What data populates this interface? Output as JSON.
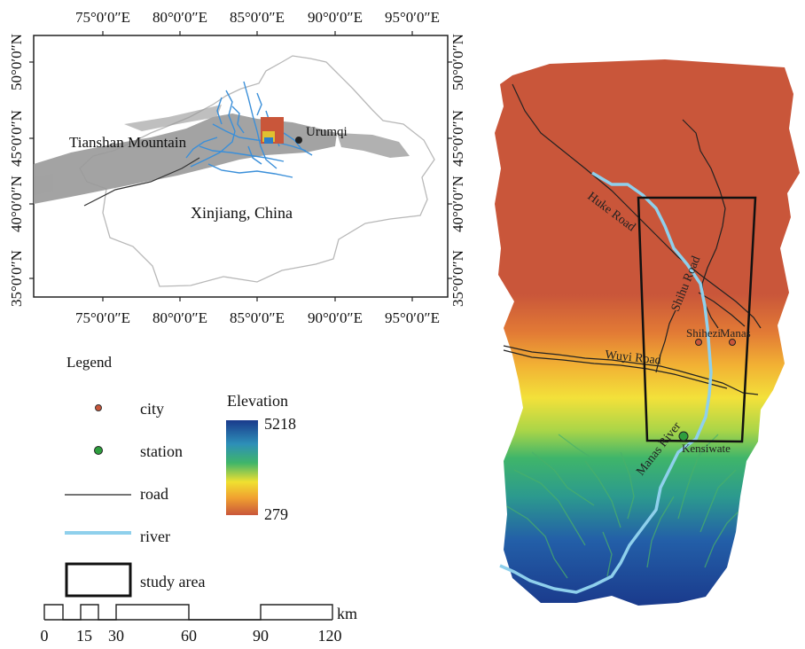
{
  "inset_map": {
    "lon_ticks": [
      "75°0′0″E",
      "80°0′0″E",
      "85°0′0″E",
      "90°0′0″E",
      "95°0′0″E"
    ],
    "lat_ticks": [
      "50°0′0″N",
      "45°0′0″N",
      "40°0′0″N",
      "35°0′0″N"
    ],
    "labels": {
      "mountain": "Tianshan Mountain",
      "region": "Xinjiang, China",
      "city": "Urumqi"
    }
  },
  "legend": {
    "title": "Legend",
    "items": [
      {
        "symbol": "city",
        "label": "city"
      },
      {
        "symbol": "station",
        "label": "station"
      },
      {
        "symbol": "road",
        "label": "road"
      },
      {
        "symbol": "river",
        "label": "river"
      },
      {
        "symbol": "study-area",
        "label": "study area"
      }
    ],
    "elevation": {
      "title": "Elevation",
      "max": "5218",
      "min": "279"
    },
    "scale": {
      "unit": "km",
      "ticks": [
        "0",
        "15",
        "30",
        "60",
        "90",
        "120"
      ]
    }
  },
  "main_map": {
    "labels": {
      "huke_road": "Huke Road",
      "shihu_road": "Shihu Road",
      "wuyi_road": "Wuyi Road",
      "manas_river": "Manas River",
      "shihezi": "Shihezi",
      "manas": "Manas",
      "kensiwate": "Kensiwate"
    }
  },
  "colors": {
    "river": "#8fd0ec",
    "lowland": "#c9563a",
    "highland": "#1e3f8a",
    "mountain_gray": "#9a9a9a",
    "station": "#2e9e3e"
  }
}
